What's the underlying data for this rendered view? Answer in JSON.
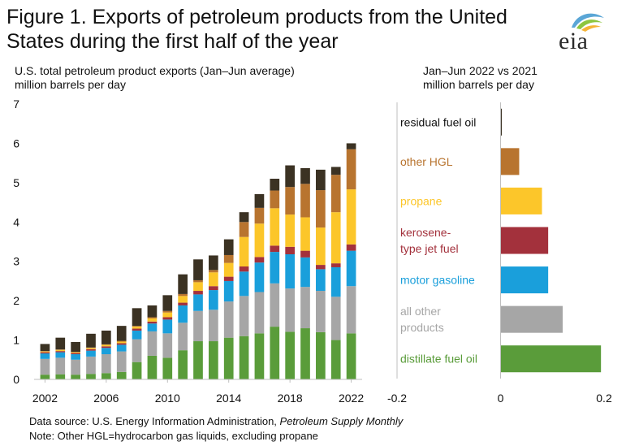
{
  "title_line1": "Figure 1. Exports of petroleum products from the United",
  "title_line2": "States during the first half of the year",
  "logo_text": "eia",
  "colors": {
    "residual fuel oil": "#3b3223",
    "other HGL": "#b8742f",
    "propane": "#fcc62a",
    "kerosene-type jet fuel": "#a3313c",
    "motor gasoline": "#1a9fdb",
    "all other products": "#a6a6a6",
    "distillate fuel oil": "#5a9c3a",
    "axis": "#bfbfbf"
  },
  "chart_data": [
    {
      "type": "bar",
      "stacked": true,
      "subtitle_line1": "U.S. total petroleum product exports (Jan–Jun average)",
      "subtitle_line2": "million barrels per day",
      "categories": [
        2002,
        2003,
        2004,
        2005,
        2006,
        2007,
        2008,
        2009,
        2010,
        2011,
        2012,
        2013,
        2014,
        2015,
        2016,
        2017,
        2018,
        2019,
        2020,
        2021,
        2022
      ],
      "tick_labels": [
        "2002",
        "2006",
        "2010",
        "2014",
        "2018",
        "2022"
      ],
      "ylim": [
        0,
        7
      ],
      "yticks": [
        "0",
        "1",
        "2",
        "3",
        "4",
        "5",
        "6",
        "7"
      ],
      "series": [
        {
          "name": "distillate fuel oil",
          "values": [
            0.12,
            0.13,
            0.12,
            0.14,
            0.16,
            0.19,
            0.44,
            0.6,
            0.55,
            0.74,
            0.97,
            0.97,
            1.06,
            1.1,
            1.17,
            1.34,
            1.21,
            1.3,
            1.2,
            1.0,
            1.17
          ]
        },
        {
          "name": "all other products",
          "values": [
            0.4,
            0.42,
            0.38,
            0.44,
            0.48,
            0.52,
            0.58,
            0.62,
            0.62,
            0.7,
            0.77,
            0.8,
            0.92,
            1.02,
            1.05,
            1.1,
            1.1,
            1.05,
            1.05,
            1.1,
            1.2
          ]
        },
        {
          "name": "motor gasoline",
          "values": [
            0.14,
            0.14,
            0.14,
            0.15,
            0.16,
            0.17,
            0.22,
            0.2,
            0.35,
            0.44,
            0.42,
            0.5,
            0.52,
            0.62,
            0.75,
            0.8,
            0.87,
            0.75,
            0.55,
            0.75,
            0.9
          ]
        },
        {
          "name": "kerosene-type jet fuel",
          "values": [
            0.03,
            0.03,
            0.03,
            0.04,
            0.04,
            0.04,
            0.05,
            0.05,
            0.06,
            0.07,
            0.09,
            0.1,
            0.11,
            0.13,
            0.14,
            0.16,
            0.19,
            0.17,
            0.11,
            0.1,
            0.16
          ]
        },
        {
          "name": "propane",
          "values": [
            0.02,
            0.03,
            0.02,
            0.03,
            0.04,
            0.04,
            0.05,
            0.08,
            0.12,
            0.17,
            0.22,
            0.35,
            0.35,
            0.75,
            0.85,
            0.95,
            0.82,
            0.85,
            0.95,
            1.3,
            1.4
          ]
        },
        {
          "name": "other HGL",
          "values": [
            0.01,
            0.01,
            0.01,
            0.01,
            0.01,
            0.02,
            0.02,
            0.03,
            0.04,
            0.05,
            0.05,
            0.06,
            0.2,
            0.38,
            0.4,
            0.45,
            0.7,
            0.85,
            0.95,
            0.95,
            1.02
          ]
        },
        {
          "name": "residual fuel oil",
          "values": [
            0.18,
            0.3,
            0.25,
            0.35,
            0.35,
            0.38,
            0.45,
            0.3,
            0.4,
            0.5,
            0.53,
            0.37,
            0.4,
            0.25,
            0.35,
            0.3,
            0.55,
            0.4,
            0.52,
            0.2,
            0.15
          ]
        }
      ]
    },
    {
      "type": "bar",
      "orientation": "horizontal",
      "subtitle_line1": "Jan–Jun 2022 vs 2021",
      "subtitle_line2": "million barrels per day",
      "xlim": [
        -0.2,
        0.2
      ],
      "xticks": [
        "-0.2",
        "0",
        "0.2"
      ],
      "categories": [
        {
          "key": "residual fuel oil",
          "lines": [
            "residual fuel oil"
          ],
          "value": 0.002
        },
        {
          "key": "other HGL",
          "lines": [
            "other HGL"
          ],
          "value": 0.036
        },
        {
          "key": "propane",
          "lines": [
            "propane"
          ],
          "value": 0.08
        },
        {
          "key": "kerosene-type jet fuel",
          "lines": [
            "kerosene-",
            "type jet fuel"
          ],
          "value": 0.092
        },
        {
          "key": "motor gasoline",
          "lines": [
            "motor gasoline"
          ],
          "value": 0.092
        },
        {
          "key": "all other products",
          "lines": [
            "all other",
            "products"
          ],
          "value": 0.12
        },
        {
          "key": "distillate fuel oil",
          "lines": [
            "distillate fuel oil"
          ],
          "value": 0.194
        }
      ]
    }
  ],
  "footer": {
    "source_prefix": "Data source: U.S. Energy Information Administration, ",
    "source_italic": "Petroleum Supply Monthly",
    "note": "Note: Other HGL=hydrocarbon gas liquids, excluding propane"
  }
}
